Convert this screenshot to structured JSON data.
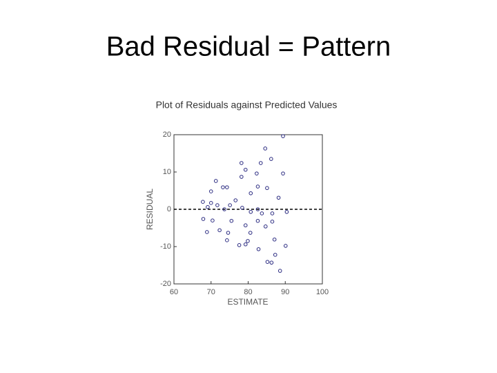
{
  "slide_title": "Bad Residual = Pattern",
  "chart_data": {
    "type": "scatter",
    "title": "Plot of Residuals against Predicted Values",
    "x_label": "ESTIMATE",
    "y_label": "RESIDUAL",
    "xlim": [
      60,
      100
    ],
    "ylim": [
      -20,
      20
    ],
    "xticks": [
      60,
      70,
      80,
      90,
      100
    ],
    "yticks": [
      -20,
      -10,
      0,
      10,
      20
    ],
    "hline": 0,
    "color": "#2a2a80",
    "series": [
      {
        "x": [
          89.4,
          84.6,
          86.2,
          83.4,
          78.2,
          79.3,
          82.3,
          89.4,
          78.2,
          71.3,
          73.2,
          74.3,
          82.6,
          85.1,
          70.0,
          80.7,
          88.2,
          76.6,
          67.8,
          70.0,
          71.7,
          75.1,
          69.1,
          73.6,
          78.4,
          82.6,
          86.5,
          90.4,
          83.7,
          80.7,
          67.9,
          70.4,
          75.5,
          82.6,
          86.5,
          79.3,
          84.7,
          72.3,
          68.9,
          80.6,
          74.6,
          79.9,
          74.3,
          87.1,
          77.6,
          79.3,
          90.1,
          82.8,
          87.3,
          85.2,
          86.3,
          88.6
        ],
        "values": [
          19.6,
          16.3,
          13.5,
          12.4,
          12.4,
          10.6,
          9.6,
          9.6,
          8.7,
          7.6,
          5.9,
          5.9,
          6.1,
          5.7,
          4.8,
          4.3,
          3.1,
          2.4,
          2.0,
          1.7,
          1.1,
          1.1,
          0.6,
          0,
          0.4,
          0,
          -1.1,
          -0.7,
          -1.1,
          -0.7,
          -2.6,
          -3.0,
          -3.1,
          -3.1,
          -3.3,
          -4.3,
          -4.6,
          -5.6,
          -6.1,
          -6.3,
          -6.3,
          -8.5,
          -8.3,
          -8.1,
          -9.6,
          -9.4,
          -9.8,
          -10.7,
          -12.2,
          -14.1,
          -14.3,
          -16.5
        ]
      }
    ]
  }
}
